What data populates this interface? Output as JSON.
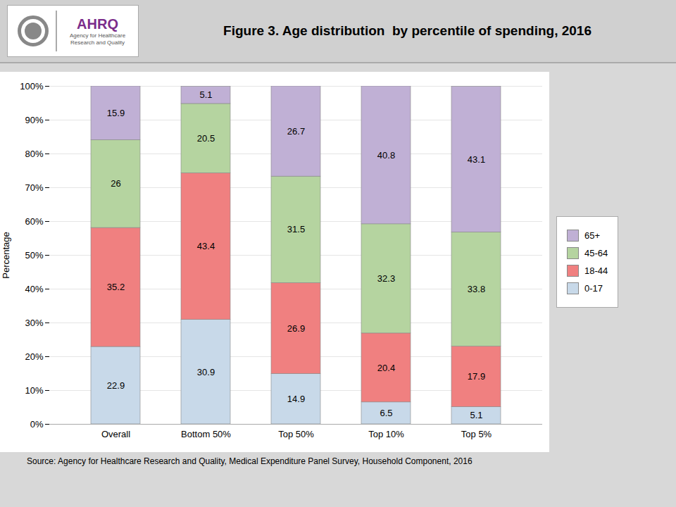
{
  "chart_data": {
    "type": "bar",
    "stacked": true,
    "title": "Figure 3. Age distribution  by percentile of spending, 2016",
    "annotations": [
      "AHRQ",
      "Agency for Healthcare\nResearch and Quality"
    ],
    "caption": "Source: Agency for Healthcare Research and Quality, Medical Expenditure Panel Survey, Household Component, 2016",
    "ylabel": "Percentage",
    "categories": [
      "Overall",
      "Bottom 50%",
      "Top 50%",
      "Top 10%",
      "Top 5%"
    ],
    "series": [
      {
        "name": "0-17",
        "color": "#C8D9E9",
        "values": [
          22.9,
          30.9,
          14.9,
          6.5,
          5.1
        ]
      },
      {
        "name": "18-44",
        "color": "#F08080",
        "values": [
          35.2,
          43.4,
          26.9,
          20.4,
          17.9
        ]
      },
      {
        "name": "45-64",
        "color": "#B5D4A0",
        "values": [
          26.0,
          20.5,
          31.5,
          32.3,
          33.8
        ]
      },
      {
        "name": "65+",
        "color": "#C0B0D5",
        "values": [
          15.9,
          5.1,
          26.7,
          40.8,
          43.1
        ]
      }
    ],
    "ylim": [
      0,
      100
    ],
    "yticks": [
      {
        "value": 0,
        "label": "0%"
      },
      {
        "value": 10,
        "label": "10%"
      },
      {
        "value": 20,
        "label": "20%"
      },
      {
        "value": 30,
        "label": "30%"
      },
      {
        "value": 40,
        "label": "40%"
      },
      {
        "value": 50,
        "label": "50%"
      },
      {
        "value": 60,
        "label": "60%"
      },
      {
        "value": 70,
        "label": "70%"
      },
      {
        "value": 80,
        "label": "80%"
      },
      {
        "value": 90,
        "label": "90%"
      },
      {
        "value": 100,
        "label": "100%"
      }
    ],
    "grid": true,
    "legend": "right",
    "data_labels": true
  }
}
